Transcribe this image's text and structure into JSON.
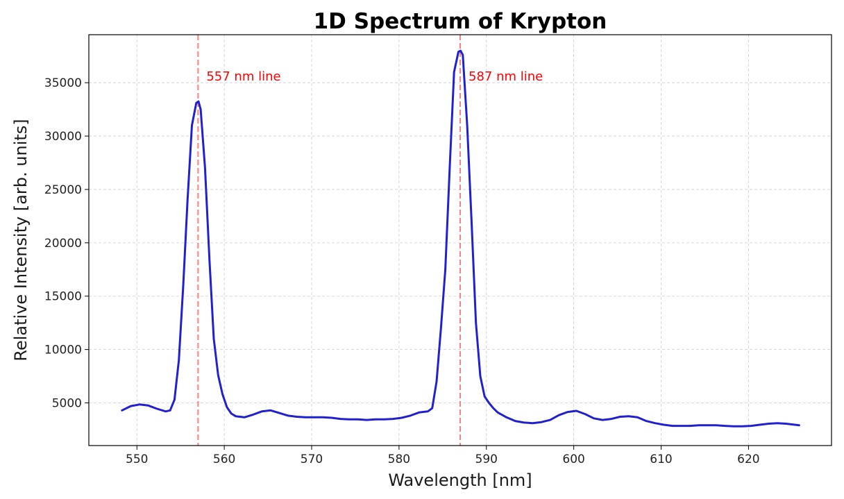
{
  "chart_data": {
    "type": "line",
    "title": "1D Spectrum of Krypton",
    "xlabel": "Wavelength [nm]",
    "ylabel": "Relative Intensity [arb. units]",
    "xlim": [
      544.5,
      629.5
    ],
    "ylim": [
      1000,
      39500
    ],
    "grid": true,
    "x_ticks": [
      550,
      560,
      570,
      580,
      590,
      600,
      610,
      620
    ],
    "x_tick_labels": [
      "550",
      "560",
      "570",
      "580",
      "590",
      "600",
      "610",
      "620"
    ],
    "y_ticks": [
      5000,
      10000,
      15000,
      20000,
      25000,
      30000,
      35000
    ],
    "y_tick_labels": [
      "5000",
      "10000",
      "15000",
      "20000",
      "25000",
      "30000",
      "35000"
    ],
    "series": [
      {
        "color": "#2020d0",
        "x": [
          548.3,
          549.3,
          550.3,
          551.3,
          552.3,
          553.3,
          553.8,
          554.3,
          554.8,
          555.3,
          555.8,
          556.3,
          556.8,
          557.05,
          557.3,
          557.8,
          558.3,
          558.8,
          559.3,
          559.8,
          560.3,
          560.8,
          561.3,
          562.3,
          563.3,
          564.3,
          565.3,
          566.3,
          567.3,
          568.3,
          569.3,
          570.3,
          571.3,
          572.3,
          573.3,
          574.3,
          575.3,
          576.3,
          577.3,
          578.3,
          579.3,
          580.3,
          581.3,
          582.3,
          583.3,
          583.8,
          584.3,
          584.8,
          585.3,
          585.8,
          586.3,
          586.8,
          587.05,
          587.3,
          587.8,
          588.3,
          588.8,
          589.3,
          589.8,
          590.3,
          590.8,
          591.3,
          592.3,
          593.3,
          594.3,
          595.3,
          596.3,
          597.3,
          598.3,
          599.3,
          600.3,
          601.3,
          602.3,
          603.3,
          604.3,
          605.3,
          606.3,
          607.3,
          608.3,
          609.3,
          610.3,
          611.3,
          612.3,
          613.3,
          614.3,
          615.3,
          616.3,
          617.3,
          618.3,
          619.3,
          620.3,
          621.3,
          622.3,
          623.3,
          624.3,
          625.3,
          625.8
        ],
        "y": [
          4300,
          4700,
          4850,
          4750,
          4450,
          4200,
          4300,
          5300,
          9000,
          16000,
          24000,
          31000,
          33100,
          33250,
          32500,
          27000,
          18500,
          11000,
          7600,
          5800,
          4600,
          4000,
          3750,
          3650,
          3900,
          4200,
          4300,
          4050,
          3800,
          3700,
          3650,
          3650,
          3650,
          3600,
          3500,
          3450,
          3450,
          3400,
          3450,
          3450,
          3500,
          3600,
          3800,
          4100,
          4200,
          4500,
          7000,
          12000,
          17500,
          27000,
          36000,
          37900,
          38000,
          37600,
          31000,
          22000,
          12500,
          7500,
          5600,
          5000,
          4500,
          4100,
          3650,
          3300,
          3150,
          3100,
          3200,
          3400,
          3850,
          4150,
          4250,
          3950,
          3550,
          3400,
          3500,
          3700,
          3750,
          3650,
          3300,
          3100,
          2950,
          2850,
          2850,
          2850,
          2900,
          2900,
          2900,
          2850,
          2800,
          2800,
          2850,
          2950,
          3050,
          3100,
          3050,
          2950,
          2900
        ]
      }
    ],
    "annotations": [
      {
        "x": 557,
        "label": "557 nm line",
        "color": "#ff0000",
        "line_color": "#ff8080",
        "label_y": 35200
      },
      {
        "x": 587,
        "label": "587 nm line",
        "color": "#ff0000",
        "line_color": "#ff8080",
        "label_y": 35200
      }
    ]
  }
}
